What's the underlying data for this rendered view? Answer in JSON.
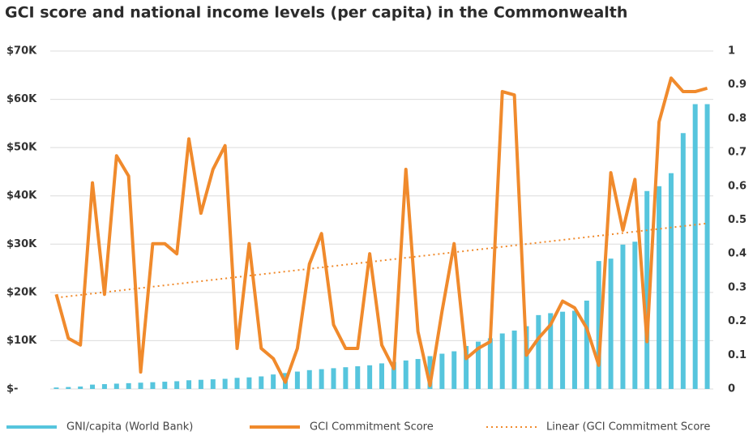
{
  "chart_data": {
    "type": "bar-line",
    "title": "GCI score and national income levels (per capita) in the Commonwealth",
    "categories": [
      null,
      null,
      null,
      null,
      null,
      null,
      null,
      null,
      null,
      null,
      null,
      null,
      null,
      null,
      null,
      null,
      null,
      null,
      null,
      null,
      null,
      null,
      null,
      null,
      null,
      null,
      null,
      null,
      null,
      null,
      null,
      null,
      null,
      null,
      null,
      null,
      null,
      null,
      null,
      null,
      null,
      null,
      null,
      null,
      null,
      null,
      null,
      null,
      null,
      null,
      null,
      null,
      null,
      null,
      null
    ],
    "series": [
      {
        "name": "GNI/capita (World Bank)",
        "type": "bar",
        "color": "#56c5dd",
        "axis": "y",
        "values": [
          300,
          400,
          500,
          900,
          1000,
          1100,
          1200,
          1300,
          1400,
          1500,
          1600,
          1800,
          1900,
          2000,
          2100,
          2300,
          2400,
          2600,
          3000,
          3300,
          3600,
          3900,
          4100,
          4300,
          4500,
          4700,
          4900,
          5300,
          5600,
          5900,
          6200,
          6800,
          7300,
          7800,
          8900,
          9800,
          10500,
          11500,
          12100,
          13000,
          15300,
          15700,
          16000,
          16200,
          18300,
          26500,
          27000,
          29900,
          30500,
          41000,
          42000,
          44700,
          53000,
          59000,
          59000
        ]
      },
      {
        "name": "GCI Commitment Score",
        "type": "line",
        "color": "#f08a2c",
        "axis": "y2",
        "values": [
          0.28,
          0.15,
          0.13,
          0.61,
          0.28,
          0.69,
          0.63,
          0.05,
          0.43,
          0.43,
          0.4,
          0.74,
          0.52,
          0.65,
          0.72,
          0.12,
          0.43,
          0.12,
          0.09,
          0.02,
          0.12,
          0.37,
          0.46,
          0.19,
          0.12,
          0.12,
          0.4,
          0.13,
          0.06,
          0.65,
          0.17,
          0.01,
          0.23,
          0.43,
          0.09,
          0.12,
          0.14,
          0.88,
          0.87,
          0.1,
          0.15,
          0.19,
          0.26,
          0.24,
          0.18,
          0.07,
          0.64,
          0.47,
          0.62,
          0.14,
          0.79,
          0.92,
          0.88,
          0.88,
          0.89
        ]
      }
    ],
    "trendline": {
      "name": "Linear (GCI Commitment Score",
      "color": "#f08a2c",
      "axis": "y2",
      "start": 0.27,
      "end": 0.49
    },
    "ylim": [
      0,
      70000
    ],
    "yticks": [
      {
        "value": 0,
        "label": "$-"
      },
      {
        "value": 10000,
        "label": "$10K"
      },
      {
        "value": 20000,
        "label": "$20K"
      },
      {
        "value": 30000,
        "label": "$30K"
      },
      {
        "value": 40000,
        "label": "$40K"
      },
      {
        "value": 50000,
        "label": "$50K"
      },
      {
        "value": 60000,
        "label": "$60K"
      },
      {
        "value": 70000,
        "label": "$70K"
      }
    ],
    "y2lim": [
      0,
      1
    ],
    "y2ticks": [
      0,
      0.1,
      0.2,
      0.3,
      0.4,
      0.5,
      0.6,
      0.7,
      0.8,
      0.9,
      1
    ],
    "grid": true,
    "legend": "bottom"
  }
}
